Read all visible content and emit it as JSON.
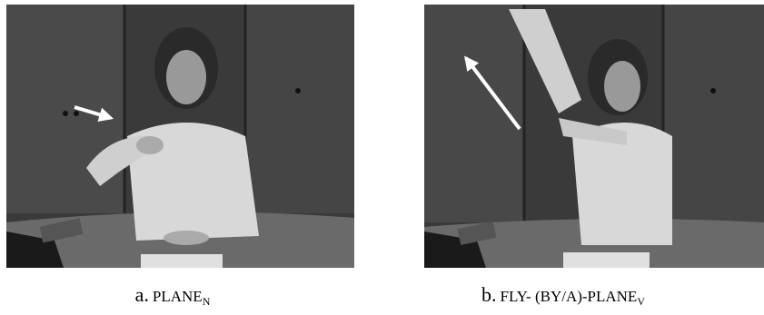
{
  "panels": [
    {
      "label": "a.",
      "gloss": "PLANE",
      "subscript": "N"
    },
    {
      "label": "b.",
      "gloss": "FLY- (BY/A)-PLANE",
      "subscript": "V"
    }
  ]
}
